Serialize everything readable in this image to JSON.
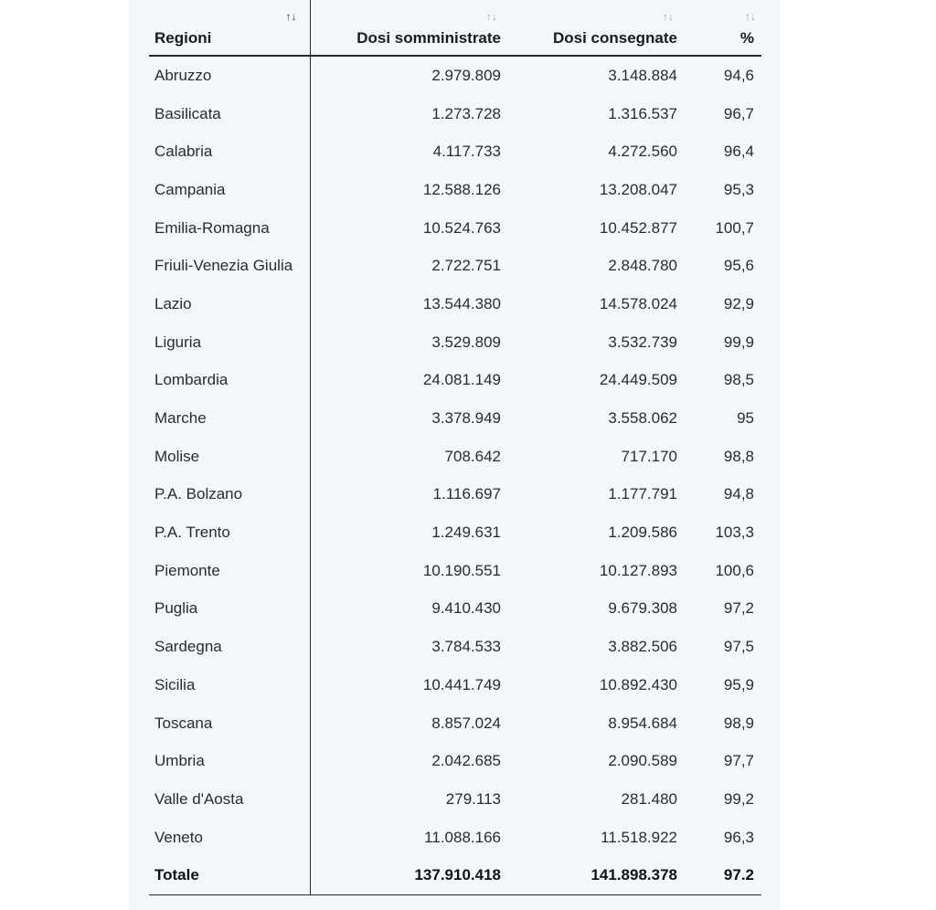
{
  "table": {
    "headers": {
      "region": "Regioni",
      "administered": "Dosi somministrate",
      "delivered": "Dosi consegnate",
      "percent": "%"
    },
    "sort_icon": "↑↓",
    "rows": [
      {
        "region": "Abruzzo",
        "administered": "2.979.809",
        "delivered": "3.148.884",
        "percent": "94,6"
      },
      {
        "region": "Basilicata",
        "administered": "1.273.728",
        "delivered": "1.316.537",
        "percent": "96,7"
      },
      {
        "region": "Calabria",
        "administered": "4.117.733",
        "delivered": "4.272.560",
        "percent": "96,4"
      },
      {
        "region": "Campania",
        "administered": "12.588.126",
        "delivered": "13.208.047",
        "percent": "95,3"
      },
      {
        "region": "Emilia-Romagna",
        "administered": "10.524.763",
        "delivered": "10.452.877",
        "percent": "100,7"
      },
      {
        "region": "Friuli-Venezia Giulia",
        "administered": "2.722.751",
        "delivered": "2.848.780",
        "percent": "95,6"
      },
      {
        "region": "Lazio",
        "administered": "13.544.380",
        "delivered": "14.578.024",
        "percent": "92,9"
      },
      {
        "region": "Liguria",
        "administered": "3.529.809",
        "delivered": "3.532.739",
        "percent": "99,9"
      },
      {
        "region": "Lombardia",
        "administered": "24.081.149",
        "delivered": "24.449.509",
        "percent": "98,5"
      },
      {
        "region": "Marche",
        "administered": "3.378.949",
        "delivered": "3.558.062",
        "percent": "95"
      },
      {
        "region": "Molise",
        "administered": "708.642",
        "delivered": "717.170",
        "percent": "98,8"
      },
      {
        "region": "P.A. Bolzano",
        "administered": "1.116.697",
        "delivered": "1.177.791",
        "percent": "94,8"
      },
      {
        "region": "P.A. Trento",
        "administered": "1.249.631",
        "delivered": "1.209.586",
        "percent": "103,3"
      },
      {
        "region": "Piemonte",
        "administered": "10.190.551",
        "delivered": "10.127.893",
        "percent": "100,6"
      },
      {
        "region": "Puglia",
        "administered": "9.410.430",
        "delivered": "9.679.308",
        "percent": "97,2"
      },
      {
        "region": "Sardegna",
        "administered": "3.784.533",
        "delivered": "3.882.506",
        "percent": "97,5"
      },
      {
        "region": "Sicilia",
        "administered": "10.441.749",
        "delivered": "10.892.430",
        "percent": "95,9"
      },
      {
        "region": "Toscana",
        "administered": "8.857.024",
        "delivered": "8.954.684",
        "percent": "98,9"
      },
      {
        "region": "Umbria",
        "administered": "2.042.685",
        "delivered": "2.090.589",
        "percent": "97,7"
      },
      {
        "region": "Valle d'Aosta",
        "administered": "279.113",
        "delivered": "281.480",
        "percent": "99,2"
      },
      {
        "region": "Veneto",
        "administered": "11.088.166",
        "delivered": "11.518.922",
        "percent": "96,3"
      }
    ],
    "total": {
      "region": "Totale",
      "administered": "137.910.418",
      "delivered": "141.898.378",
      "percent": "97.2"
    }
  }
}
